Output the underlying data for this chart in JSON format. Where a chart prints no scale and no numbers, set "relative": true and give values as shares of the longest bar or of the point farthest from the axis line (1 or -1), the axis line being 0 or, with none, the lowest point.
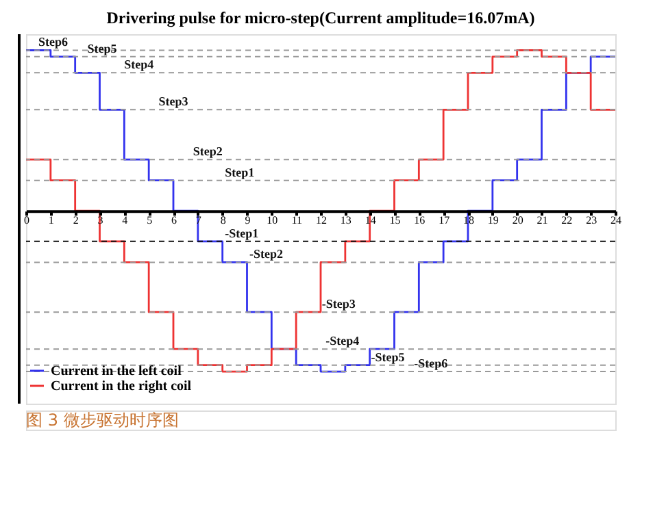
{
  "chart_data": {
    "type": "step",
    "title": "Drivering pulse for micro-step(Current amplitude=16.07mA)",
    "relative": true,
    "x": [
      0,
      1,
      2,
      3,
      4,
      5,
      6,
      7,
      8,
      9,
      10,
      11,
      12,
      13,
      14,
      15,
      16,
      17,
      18,
      19,
      20,
      21,
      22,
      23,
      24
    ],
    "xlim": [
      0,
      24
    ],
    "xticks": [
      0,
      1,
      2,
      3,
      4,
      5,
      6,
      7,
      8,
      9,
      10,
      11,
      12,
      13,
      14,
      15,
      16,
      17,
      18,
      19,
      20,
      21,
      22,
      23,
      24
    ],
    "series": [
      {
        "name": "Current in the left coil",
        "color": "#3333ee",
        "values": [
          1,
          0.96,
          0.86,
          0.63,
          0.32,
          0.19,
          0,
          -0.19,
          -0.32,
          -0.63,
          -0.86,
          -0.96,
          -1,
          -0.96,
          -0.86,
          -0.63,
          -0.32,
          -0.19,
          0,
          0.19,
          0.32,
          0.63,
          0.86,
          0.96,
          0.96
        ]
      },
      {
        "name": "Current in the right coil",
        "color": "#ee3333",
        "values": [
          0.32,
          0.19,
          0,
          -0.19,
          -0.32,
          -0.63,
          -0.86,
          -0.96,
          -1,
          -0.96,
          -0.86,
          -0.63,
          -0.32,
          -0.19,
          0,
          0.19,
          0.32,
          0.63,
          0.86,
          0.96,
          1,
          0.96,
          0.86,
          0.63,
          0.63
        ]
      }
    ],
    "ref_lines": [
      {
        "axis": "y",
        "value": 1,
        "color": "#999999",
        "line_style": "dashed"
      },
      {
        "axis": "y",
        "value": 0.96,
        "color": "#999999",
        "line_style": "dashed"
      },
      {
        "axis": "y",
        "value": 0.86,
        "color": "#999999",
        "line_style": "dashed"
      },
      {
        "axis": "y",
        "value": 0.63,
        "color": "#999999",
        "line_style": "dashed"
      },
      {
        "axis": "y",
        "value": 0.32,
        "color": "#999999",
        "line_style": "dashed"
      },
      {
        "axis": "y",
        "value": 0.19,
        "color": "#999999",
        "line_style": "dashed"
      },
      {
        "axis": "y",
        "value": -0.19,
        "color": "#111111",
        "line_style": "dashed"
      },
      {
        "axis": "y",
        "value": -0.32,
        "color": "#999999",
        "line_style": "dashed"
      },
      {
        "axis": "y",
        "value": -0.63,
        "color": "#999999",
        "line_style": "dashed"
      },
      {
        "axis": "y",
        "value": -0.86,
        "color": "#999999",
        "line_style": "dashed"
      },
      {
        "axis": "y",
        "value": -0.96,
        "color": "#999999",
        "line_style": "dashed"
      },
      {
        "axis": "y",
        "value": -1,
        "color": "#999999",
        "line_style": "dashed"
      }
    ],
    "annotations": [
      {
        "text": "Step6",
        "x": 0.5,
        "y": 1
      },
      {
        "text": "Step5",
        "x": 2.5,
        "y": 0.96
      },
      {
        "text": "Step4",
        "x": 4,
        "y": 0.86
      },
      {
        "text": "Step3",
        "x": 5.4,
        "y": 0.63
      },
      {
        "text": "Step2",
        "x": 6.8,
        "y": 0.32
      },
      {
        "text": "Step1",
        "x": 8.1,
        "y": 0.19
      },
      {
        "text": "-Step1",
        "x": 8.1,
        "y": -0.19
      },
      {
        "text": "-Step2",
        "x": 9.1,
        "y": -0.32
      },
      {
        "text": "-Step3",
        "x": 12.05,
        "y": -0.63
      },
      {
        "text": "-Step4",
        "x": 12.2,
        "y": -0.86
      },
      {
        "text": "-Step5",
        "x": 14.05,
        "y": -0.96
      },
      {
        "text": "-Step6",
        "x": 15.8,
        "y": -1
      },
      "图 3  微步驱动时序图"
    ],
    "legend": "bottom left",
    "grid": false
  }
}
